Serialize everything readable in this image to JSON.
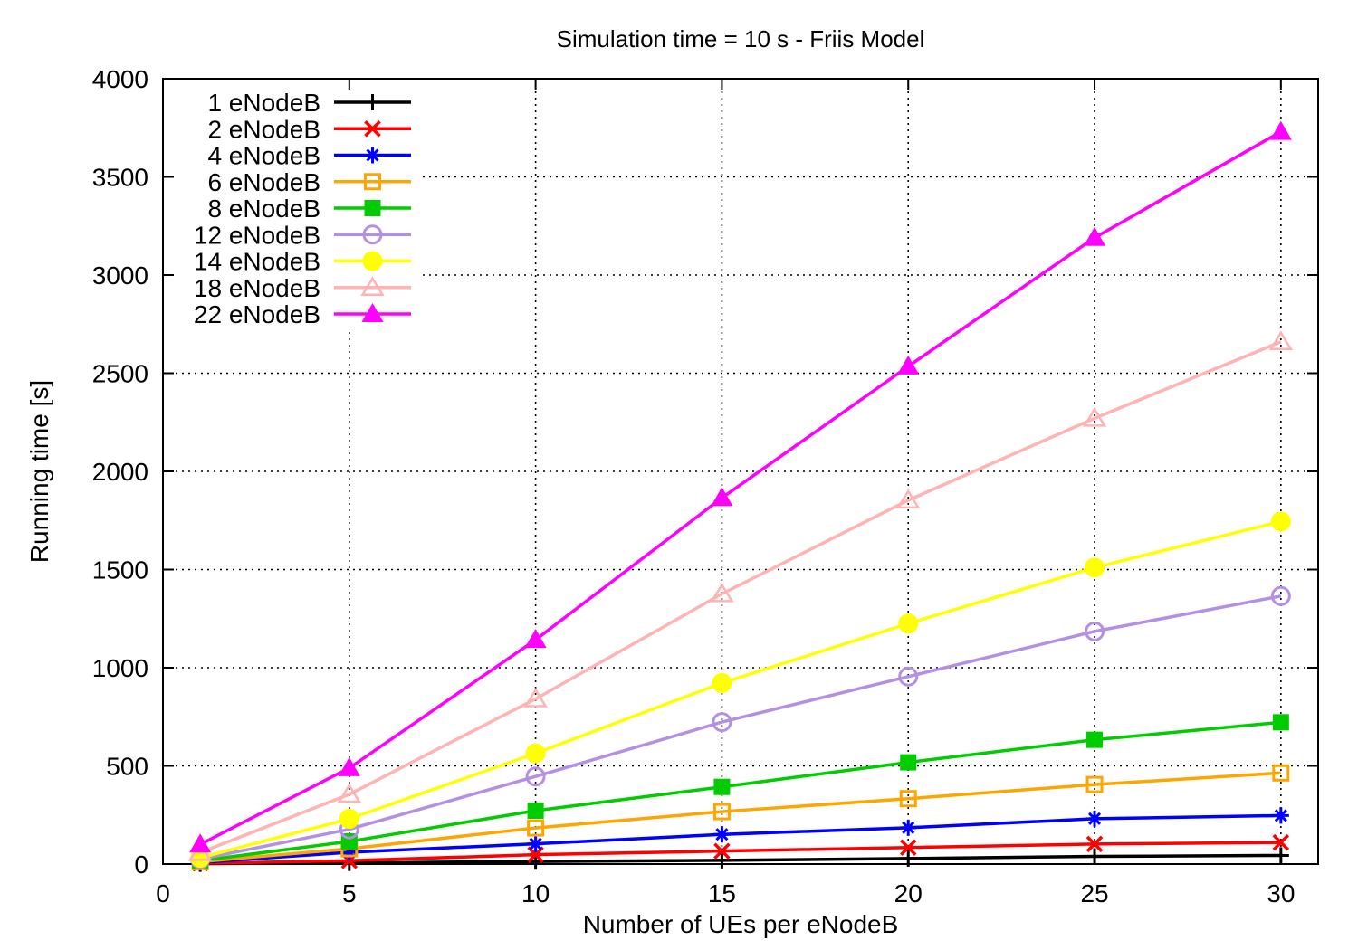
{
  "chart_data": {
    "type": "line",
    "title": "Simulation time = 10 s - Friis Model",
    "xlabel": "Number of UEs per eNodeB",
    "ylabel": "Running time [s]",
    "xlim": [
      0,
      31
    ],
    "ylim": [
      0,
      4000
    ],
    "x_ticks": [
      0,
      5,
      10,
      15,
      20,
      25,
      30
    ],
    "y_ticks": [
      0,
      500,
      1000,
      1500,
      2000,
      2500,
      3000,
      3500,
      4000
    ],
    "grid": true,
    "legend_position": "top-left",
    "x": [
      1,
      5,
      10,
      15,
      20,
      25,
      30
    ],
    "series": [
      {
        "name": "1 eNodeB",
        "color": "#000000",
        "marker": "plus",
        "values": [
          2,
          6,
          13,
          19,
          28,
          39,
          44
        ]
      },
      {
        "name": "2 eNodeB",
        "color": "#ff0000",
        "marker": "cross",
        "values": [
          4,
          17,
          48,
          66,
          84,
          102,
          110
        ]
      },
      {
        "name": "4 eNodeB",
        "color": "#0000ff",
        "marker": "asterisk",
        "values": [
          8,
          60,
          103,
          151,
          185,
          231,
          247
        ]
      },
      {
        "name": "6 eNodeB",
        "color": "#ffa500",
        "marker": "open-square",
        "values": [
          12,
          78,
          184,
          267,
          333,
          405,
          464
        ]
      },
      {
        "name": "8 eNodeB",
        "color": "#00cc00",
        "marker": "filled-square",
        "values": [
          17,
          115,
          272,
          393,
          518,
          633,
          722
        ]
      },
      {
        "name": "12 eNodeB",
        "color": "#b38fe6",
        "marker": "open-circle",
        "values": [
          25,
          177,
          446,
          723,
          955,
          1185,
          1365
        ]
      },
      {
        "name": "14 eNodeB",
        "color": "#ffff00",
        "marker": "filled-circle",
        "values": [
          32,
          230,
          564,
          922,
          1225,
          1510,
          1745
        ]
      },
      {
        "name": "18 eNodeB",
        "color": "#ffb3b3",
        "marker": "open-triangle",
        "values": [
          58,
          355,
          841,
          1376,
          1853,
          2270,
          2660
        ]
      },
      {
        "name": "22 eNodeB",
        "color": "#ff00ff",
        "marker": "filled-triangle",
        "values": [
          100,
          489,
          1142,
          1865,
          2535,
          3190,
          3730
        ]
      }
    ]
  }
}
